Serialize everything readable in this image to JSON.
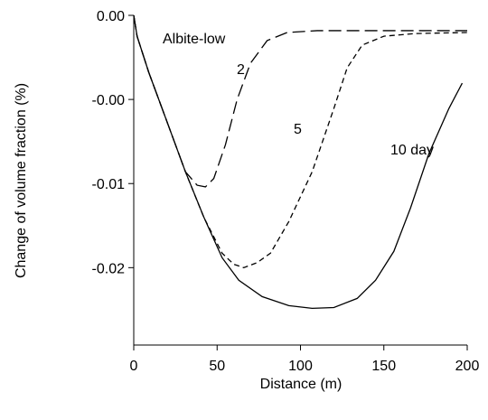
{
  "chart_data": {
    "type": "line",
    "x_label": "Distance (m)",
    "y_label": "Change of volume fraction (%)",
    "annotations": [
      "Albite-low"
    ],
    "xlim": [
      0,
      200
    ],
    "xticks": [
      0,
      50,
      100,
      150,
      200
    ],
    "ylim": [
      -0.0196,
      0
    ],
    "yticks": [
      {
        "value": 0,
        "label": "0.00"
      },
      {
        "value": -0.005,
        "label": "-0.00"
      },
      {
        "value": -0.01,
        "label": "-0.01"
      },
      {
        "value": -0.015,
        "label": "-0.02"
      }
    ],
    "series": [
      {
        "name": "2",
        "color": "#000000",
        "dash": "long",
        "x": [
          0,
          2,
          9,
          20,
          31,
          38,
          43,
          48,
          55,
          62,
          70,
          80,
          92,
          110,
          150,
          200
        ],
        "values": [
          0,
          -0.00124,
          -0.00339,
          -0.00634,
          -0.0093,
          -0.0101,
          -0.0102,
          -0.0097,
          -0.00769,
          -0.005,
          -0.00285,
          -0.0015,
          -0.00102,
          -0.00091,
          -0.00091,
          -0.00091
        ]
      },
      {
        "name": "5",
        "color": "#000000",
        "dash": "short",
        "x": [
          0,
          2,
          9,
          20,
          31,
          42,
          53,
          60,
          66,
          74,
          82,
          93,
          107,
          120,
          128,
          137,
          150,
          169,
          200
        ],
        "values": [
          0,
          -0.00124,
          -0.00339,
          -0.00634,
          -0.0093,
          -0.012,
          -0.01414,
          -0.0148,
          -0.015,
          -0.0147,
          -0.01414,
          -0.01226,
          -0.0093,
          -0.00554,
          -0.00312,
          -0.00177,
          -0.00124,
          -0.00108,
          -0.00102
        ]
      },
      {
        "name": "10 day",
        "color": "#000000",
        "dash": "solid",
        "x": [
          0,
          2,
          9,
          20,
          31,
          42,
          53,
          63,
          77,
          93,
          107,
          120,
          134,
          145,
          156,
          166,
          177,
          189,
          197
        ],
        "values": [
          0,
          -0.00124,
          -0.00339,
          -0.00634,
          -0.0093,
          -0.01199,
          -0.01441,
          -0.01575,
          -0.01672,
          -0.01726,
          -0.01742,
          -0.01737,
          -0.01683,
          -0.01575,
          -0.01403,
          -0.01145,
          -0.00823,
          -0.00554,
          -0.00403
        ]
      }
    ]
  }
}
